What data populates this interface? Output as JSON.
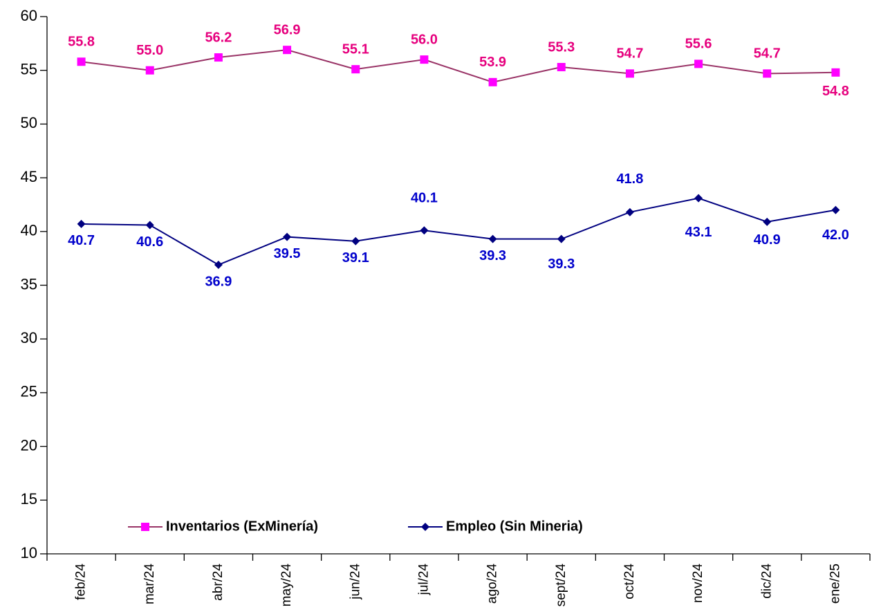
{
  "chart_data": {
    "type": "line",
    "categories": [
      "feb/24",
      "mar/24",
      "abr/24",
      "may/24",
      "jun/24",
      "jul/24",
      "ago/24",
      "sept/24",
      "oct/24",
      "nov/24",
      "dic/24",
      "ene/25"
    ],
    "ylim": [
      10,
      60
    ],
    "yticks": [
      10,
      15,
      20,
      25,
      30,
      35,
      40,
      45,
      50,
      55,
      60
    ],
    "grid": false,
    "series": [
      {
        "name": "Inventarios (ExMinería)",
        "color": "#993366",
        "marker": "square",
        "marker_color": "#ff00ff",
        "label_color": "#e6007e",
        "values": [
          55.8,
          55.0,
          56.2,
          56.9,
          55.1,
          56.0,
          53.9,
          55.3,
          54.7,
          55.6,
          54.7,
          54.8
        ],
        "value_labels": [
          "55.8",
          "55.0",
          "56.2",
          "56.9",
          "55.1",
          "56.0",
          "53.9",
          "55.3",
          "54.7",
          "55.6",
          "54.7",
          "54.8"
        ]
      },
      {
        "name": "Empleo (Sin Mineria)",
        "color": "#000080",
        "marker": "diamond",
        "marker_color": "#000080",
        "label_color": "#0000cc",
        "values": [
          40.7,
          40.6,
          36.9,
          39.5,
          39.1,
          40.1,
          39.3,
          39.3,
          41.8,
          43.1,
          40.9,
          42.0
        ],
        "value_labels": [
          "40.7",
          "40.6",
          "36.9",
          "39.5",
          "39.1",
          "40.1",
          "39.3",
          "39.3",
          "41.8",
          "43.1",
          "40.9",
          "42.0"
        ]
      }
    ]
  }
}
